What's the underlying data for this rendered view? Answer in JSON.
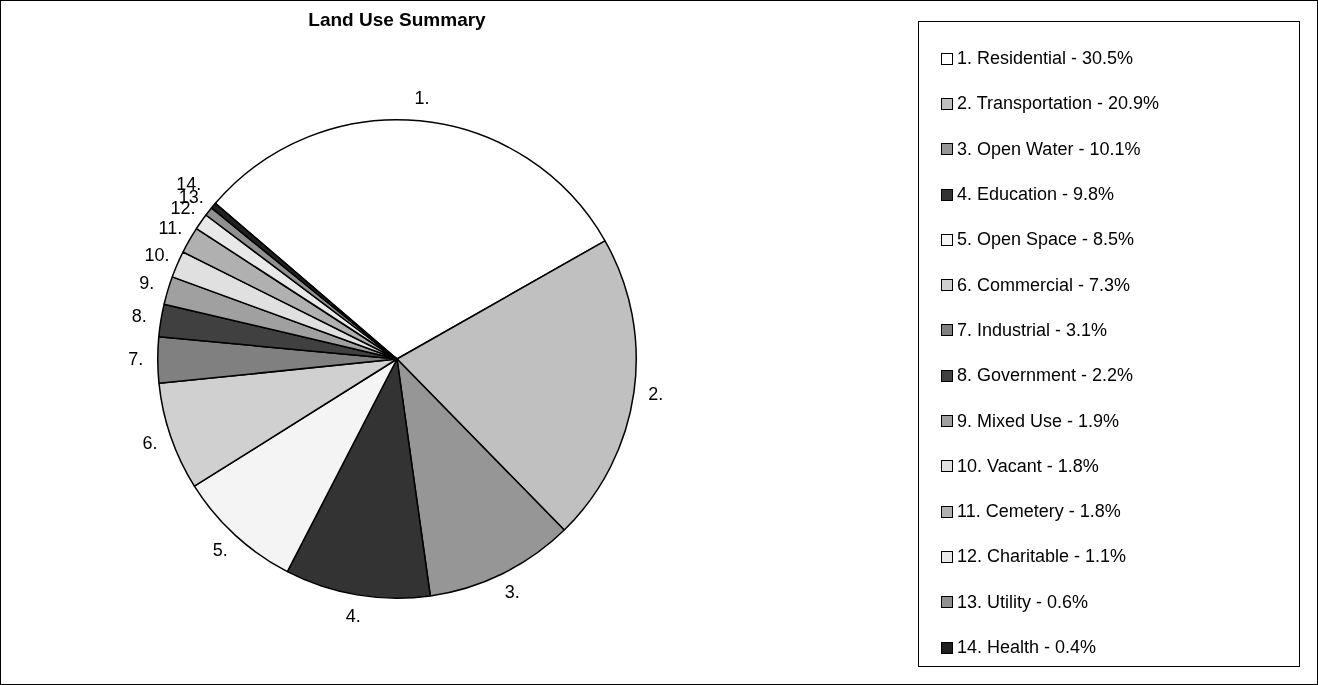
{
  "chart_data": {
    "type": "pie",
    "title": "Land Use Summary",
    "categories": [
      "1. Residential - 30.5%",
      "2. Transportation - 20.9%",
      "3. Open Water - 10.1%",
      "4. Education - 9.8%",
      "5. Open Space - 8.5%",
      "6. Commercial - 7.3%",
      "7. Industrial - 3.1%",
      "8. Government - 2.2%",
      "9. Mixed Use - 1.9%",
      "10. Vacant - 1.8%",
      "11. Cemetery - 1.8%",
      "12. Charitable - 1.1%",
      "13. Utility - 0.6%",
      "14. Health - 0.4%"
    ],
    "values": [
      30.5,
      20.9,
      10.1,
      9.8,
      8.5,
      7.3,
      3.1,
      2.2,
      1.9,
      1.8,
      1.8,
      1.1,
      0.6,
      0.4
    ],
    "annotations": [
      "1.",
      "2.",
      "3.",
      "4.",
      "5.",
      "6.",
      "7.",
      "8.",
      "9.",
      "10.",
      "11.",
      "12.",
      "13.",
      "14."
    ],
    "colors": [
      "#ffffff",
      "#c0c0c0",
      "#969696",
      "#333333",
      "#f4f4f4",
      "#d0d0d0",
      "#808080",
      "#404040",
      "#a0a0a0",
      "#e0e0e0",
      "#b0b0b0",
      "#e8e8e8",
      "#909090",
      "#202020"
    ],
    "legend": "right"
  }
}
